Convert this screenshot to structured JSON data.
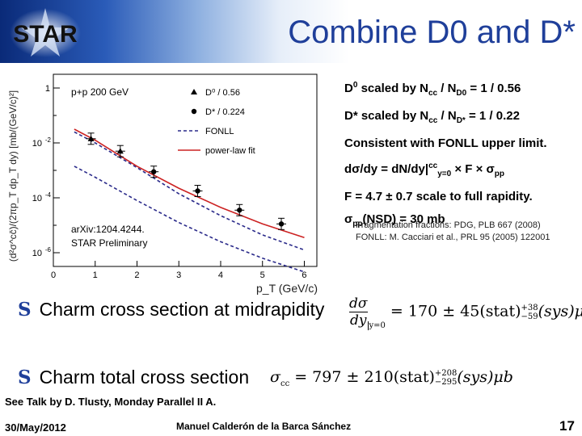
{
  "header": {
    "title": "Combine D0 and D*",
    "logo_text": "STAR"
  },
  "info_lines": {
    "d0_prefix": "D",
    "d0_sup": "0",
    "d0_mid": " scaled by N",
    "d0_cc": "cc",
    "d0_slash": " / N",
    "d0_den": "D0",
    "d0_value": " = 1 / 0.56",
    "dstar_prefix": "D* scaled by N",
    "dstar_cc": "cc",
    "dstar_slash": " / N",
    "dstar_den": "D*",
    "dstar_value": " = 1 / 0.22",
    "fonll": "Consistent with FONLL upper limit.",
    "dsigma_a": "dσ/dy = dN/dy|",
    "dsigma_cc": "cc",
    "dsigma_y": "y=0",
    "dsigma_b": " × F × σ",
    "dsigma_pp": "pp",
    "factor": "F = 4.7 ± 0.7 scale to full rapidity.",
    "sigma_a": "σ",
    "sigma_pp": "pp",
    "sigma_b": "(NSD) = 30 mb"
  },
  "fragmentation": {
    "line1": "Fragmentation fractions: PDG, PLB 667 (2008)",
    "line2": "FONLL: M. Cacciari et al., PRL 95 (2005) 122001"
  },
  "bullets": {
    "glyph": "S",
    "item1": "Charm cross section at midrapidity",
    "item2": "Charm total cross section"
  },
  "formula1": {
    "num": "dσ",
    "den": "dy",
    "eval": "y=0",
    "body": " = 170 ± 45(stat)",
    "sup": "+38",
    "sub": "−59",
    "tail": "(sys)μb"
  },
  "formula2": {
    "lhs": "σ",
    "lhs_sub": "cc",
    "body": " = 797 ± 210(stat)",
    "sup": "+208",
    "sub": "−295",
    "tail": "(sys)μb"
  },
  "footer": {
    "talk": "See Talk by D. Tlusty, Monday Parallel II A.",
    "date": "30/May/2012",
    "author": "Manuel Calderón de la Barca Sánchez",
    "page": "17"
  },
  "chart_data": {
    "type": "scatter",
    "title": "",
    "xlabel": "p_T (GeV/c)",
    "ylabel": "(d²σ^cc̄)/(2πp_T dp_T dy) [mb/(GeV/c)²]",
    "xlim": [
      0,
      6.3
    ],
    "ylim_log10": [
      -6.5,
      0.5
    ],
    "y_scale": "log",
    "x_ticks": [
      "0",
      "1",
      "2",
      "3",
      "4",
      "5",
      "6"
    ],
    "y_ticks": [
      "1",
      "10",
      "10",
      "10"
    ],
    "y_tick_exps": [
      "",
      "-2",
      "-4",
      "-6"
    ],
    "grid": false,
    "legend_position": "top-right",
    "annotation_top": "p+p 200 GeV",
    "annotation_bottom_1": "arXiv:1204.4244.",
    "annotation_bottom_2": "STAR Preliminary",
    "series": [
      {
        "name": "D⁰ / 0.56",
        "marker": "triangle",
        "color": "#000000",
        "x": [
          0.9,
          1.6
        ],
        "y": [
          0.0142,
          0.00501
        ]
      },
      {
        "name": "D* / 0.224",
        "marker": "circle",
        "color": "#000000",
        "x": [
          2.4,
          3.45,
          4.45,
          5.45
        ],
        "y": [
          0.000891,
          0.000178,
          3.55e-05,
          1.12e-05
        ]
      }
    ],
    "curves": [
      {
        "name": "FONLL",
        "style": "dashed",
        "color": "#2a2a8a",
        "x": [
          0.5,
          1.0,
          2.0,
          3.0,
          4.0,
          5.0,
          6.0
        ],
        "y_upper": [
          0.0251,
          0.01,
          0.00126,
          0.000141,
          2.24e-05,
          4.47e-06,
          1.26e-06
        ],
        "y_lower": [
          0.00141,
          0.000562,
          7.94e-05,
          1.26e-05,
          2.51e-06,
          6.31e-07,
          2e-07
        ]
      },
      {
        "name": "power-law fit",
        "style": "solid",
        "color": "#cc2222",
        "x": [
          0.5,
          1.0,
          2.0,
          3.0,
          4.0,
          5.0,
          6.0
        ],
        "y": [
          0.0316,
          0.0126,
          0.00141,
          0.000224,
          4.47e-05,
          1.12e-05,
          3.55e-06
        ]
      }
    ]
  }
}
